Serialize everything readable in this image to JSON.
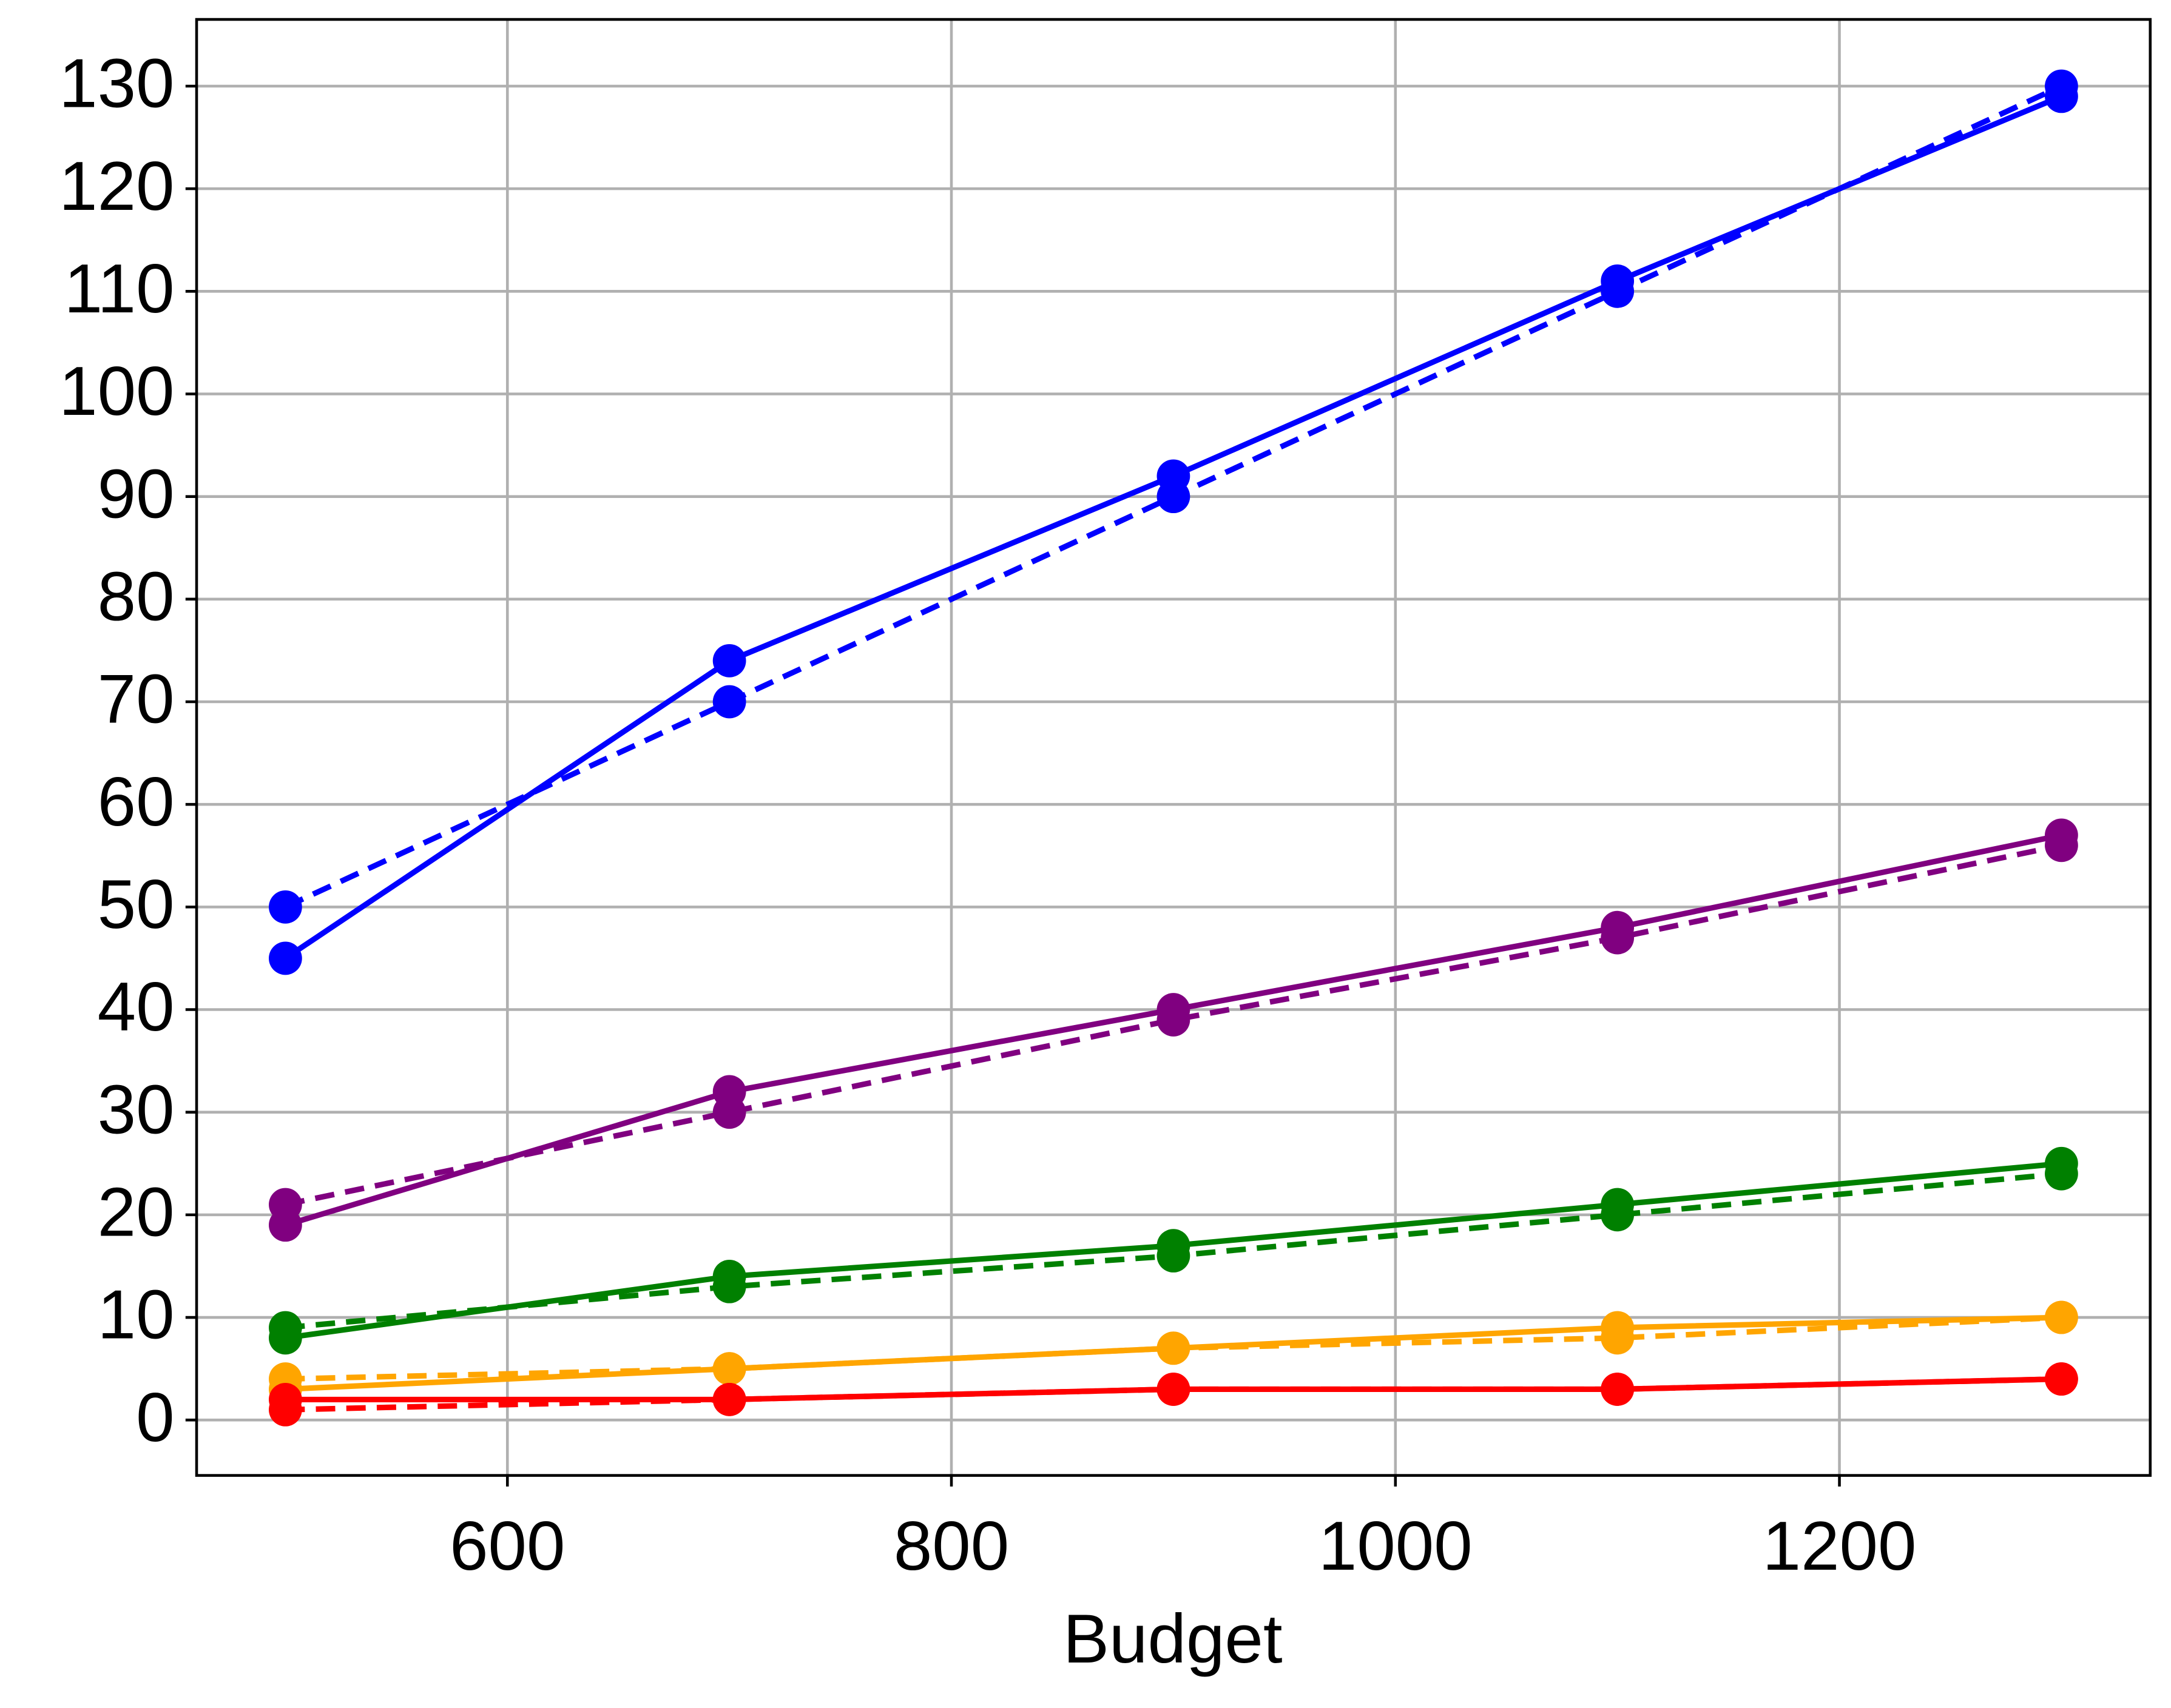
{
  "chart_data": {
    "type": "line",
    "x": [
      500,
      700,
      900,
      1100,
      1300
    ],
    "x_label": "Budget",
    "xlim": [
      460,
      1340
    ],
    "xticks": [
      600,
      800,
      1000,
      1200
    ],
    "ylim": [
      -5.4,
      136.5
    ],
    "yticks": [
      0,
      10,
      20,
      30,
      40,
      50,
      60,
      70,
      80,
      90,
      100,
      110,
      120,
      130
    ],
    "grid": true,
    "series": [
      {
        "color": "#0000ff",
        "dashed": false,
        "values": [
          45,
          74,
          92,
          111,
          129
        ]
      },
      {
        "color": "#0000ff",
        "dashed": true,
        "values": [
          50,
          70,
          90,
          110,
          130
        ]
      },
      {
        "color": "#800080",
        "dashed": false,
        "values": [
          19,
          32,
          40,
          48,
          57
        ]
      },
      {
        "color": "#800080",
        "dashed": true,
        "values": [
          21,
          30,
          39,
          47,
          56
        ]
      },
      {
        "color": "#008000",
        "dashed": false,
        "values": [
          8,
          14,
          17,
          21,
          25
        ]
      },
      {
        "color": "#008000",
        "dashed": true,
        "values": [
          9,
          13,
          16,
          20,
          24
        ]
      },
      {
        "color": "#ffa500",
        "dashed": false,
        "values": [
          3,
          5,
          7,
          9,
          10
        ]
      },
      {
        "color": "#ffa500",
        "dashed": true,
        "values": [
          4,
          5,
          7,
          8,
          10
        ]
      },
      {
        "color": "#ff0000",
        "dashed": false,
        "values": [
          2,
          2,
          3,
          3,
          4
        ]
      },
      {
        "color": "#ff0000",
        "dashed": true,
        "values": [
          1,
          2,
          3,
          3,
          4
        ]
      }
    ]
  }
}
